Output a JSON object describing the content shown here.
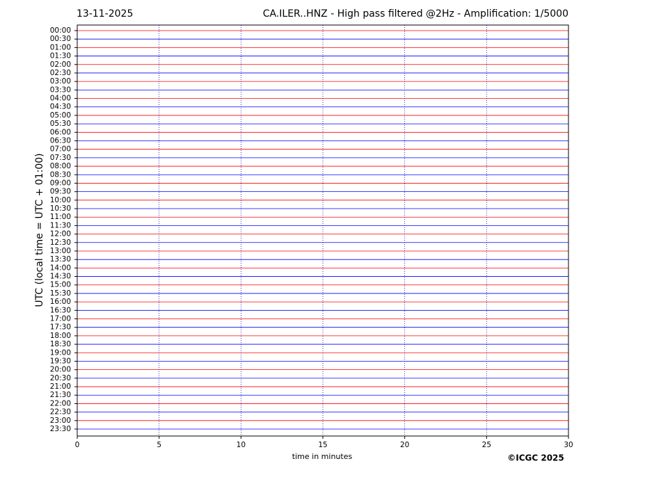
{
  "chart_data": {
    "type": "helicorder",
    "date": "13-11-2025",
    "title": "CA.ILER..HNZ - High pass filtered @2Hz - Amplification: 1/5000",
    "xlabel": "time in minutes",
    "ylabel": "UTC (local time = UTC + 01:00)",
    "copyright": "©ICGC 2025",
    "categories": [
      "00:00",
      "00:30",
      "01:00",
      "01:30",
      "02:00",
      "02:30",
      "03:00",
      "03:30",
      "04:00",
      "04:30",
      "05:00",
      "05:30",
      "06:00",
      "06:30",
      "07:00",
      "07:30",
      "08:00",
      "08:30",
      "09:00",
      "09:30",
      "10:00",
      "10:30",
      "11:00",
      "11:30",
      "12:00",
      "12:30",
      "13:00",
      "13:30",
      "14:00",
      "14:30",
      "15:00",
      "15:30",
      "16:00",
      "16:30",
      "17:00",
      "17:30",
      "18:00",
      "18:30",
      "19:00",
      "19:30",
      "20:00",
      "20:30",
      "21:00",
      "21:30",
      "22:00",
      "22:30",
      "23:00",
      "23:30"
    ],
    "colors": [
      "#ff0000",
      "#0000ff"
    ],
    "xlim": [
      0,
      30
    ],
    "xticks": [
      0,
      5,
      10,
      15,
      20,
      25,
      30
    ],
    "grid": true,
    "grid_color": "#0000aa"
  }
}
